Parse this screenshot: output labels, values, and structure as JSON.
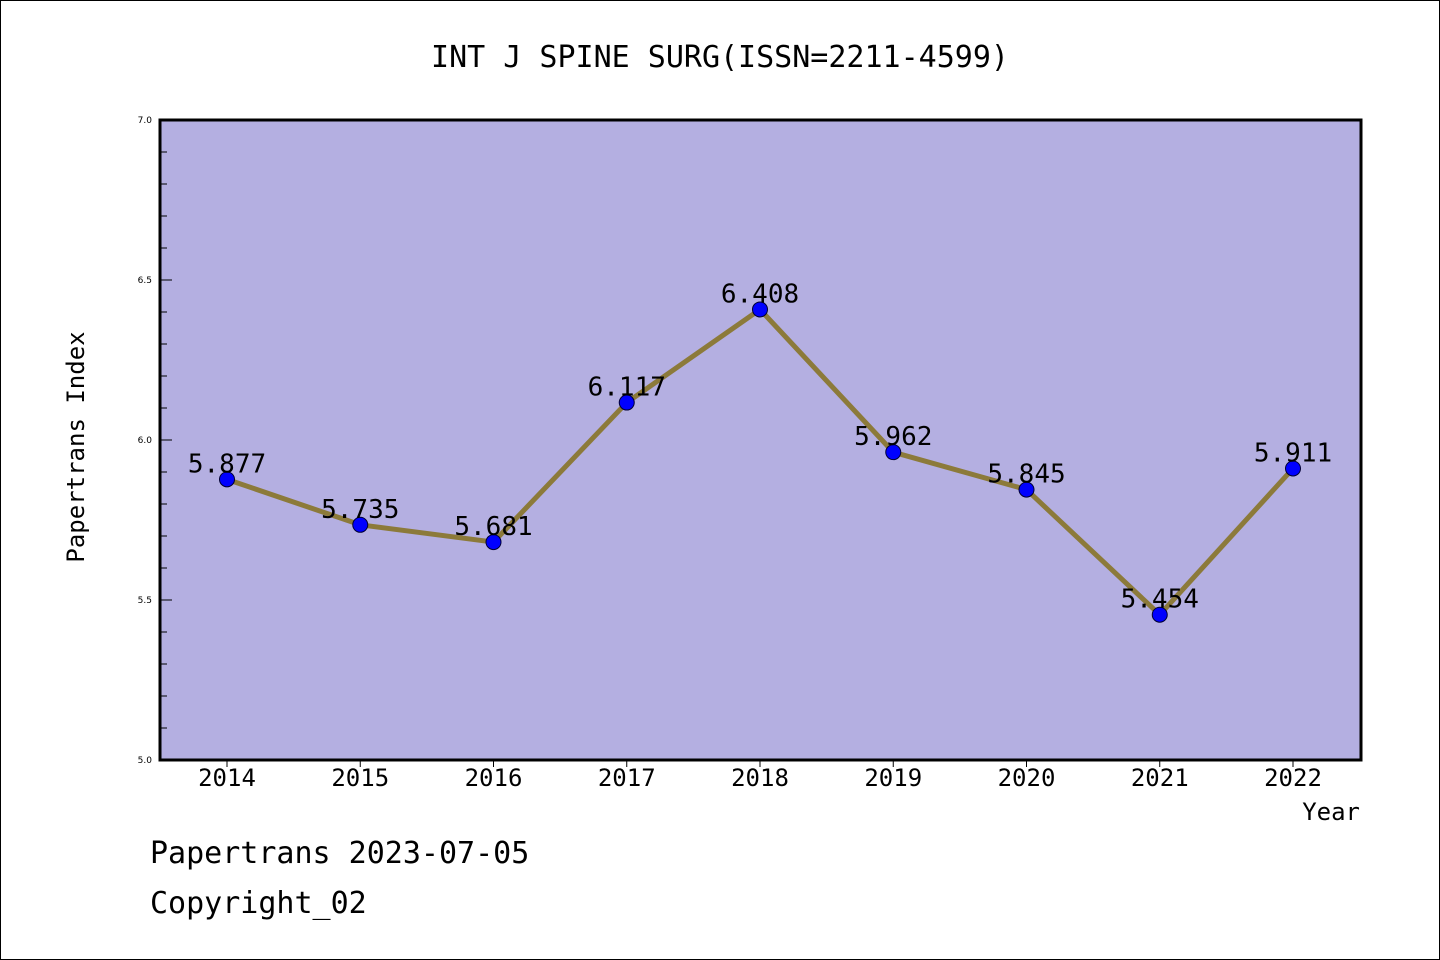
{
  "chart_data": {
    "type": "line",
    "title": "INT J SPINE SURG(ISSN=2211-4599)",
    "xlabel": "Year",
    "ylabel": "Papertrans Index",
    "categories": [
      "2014",
      "2015",
      "2016",
      "2017",
      "2018",
      "2019",
      "2020",
      "2021",
      "2022"
    ],
    "values": [
      5.877,
      5.735,
      5.681,
      6.117,
      6.408,
      5.962,
      5.845,
      5.454,
      5.911
    ],
    "data_labels": [
      "5.877",
      "5.735",
      "5.681",
      "6.117",
      "6.408",
      "5.962",
      "5.845",
      "5.454",
      "5.911"
    ],
    "ylim": [
      5.0,
      7.0
    ],
    "yticks": [
      "5.0",
      "5.5",
      "6.0",
      "6.5",
      "7.0"
    ],
    "grid": false,
    "legend": "none",
    "colors": {
      "plot_background": "#b4afe1",
      "line": "#8c7a3a",
      "marker": "#0000ff",
      "axis": "#000000"
    }
  },
  "footer": {
    "line1": "Papertrans 2023-07-05",
    "line2": "Copyright_02"
  }
}
